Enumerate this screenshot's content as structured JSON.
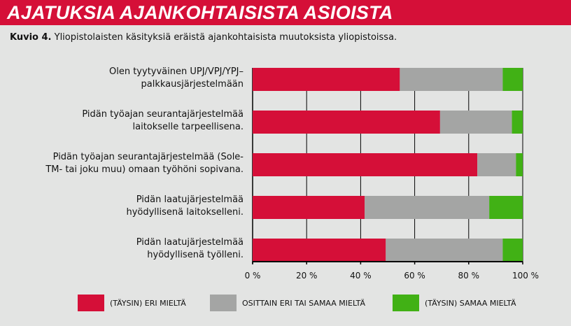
{
  "header": {
    "title": "AJATUKSIA AJANKOHTAISISTA ASIOISTA"
  },
  "caption": {
    "label": "Kuvio 4.",
    "text": "Yliopistolaisten käsityksiä eräistä ajankohtaisista muutoksista yliopistoissa."
  },
  "chart_data": {
    "type": "bar",
    "orientation": "horizontal",
    "stacked": true,
    "categories": [
      [
        "Olen tyytyväinen UPJ/VPJ/YPJ–",
        "palkkausjärjestelmään"
      ],
      [
        "Pidän työajan seurantajärjestelmää",
        "laitokselle tarpeellisena."
      ],
      [
        "Pidän työajan seurantajärjestelmää (Sole-",
        "TM- tai joku muu) omaan työhöni sopivana."
      ],
      [
        "Pidän laatujärjestelmää",
        "hyödyllisenä laitokselleni."
      ],
      [
        "Pidän laatujärjestelmää",
        "hyödyllisenä työlleni."
      ]
    ],
    "series": [
      {
        "name": "(TÄYSIN) ERI MIELTÄ",
        "color": "#d50f38",
        "values": [
          54.5,
          69.4,
          83.2,
          41.5,
          49.3
        ]
      },
      {
        "name": "OSITTAIN ERI TAI SAMAA MIELTÄ",
        "color": "#a4a5a4",
        "values": [
          38.1,
          26.6,
          14.3,
          46.1,
          43.3
        ]
      },
      {
        "name": "(TÄYSIN) SAMAA MIELTÄ",
        "color": "#41b115",
        "values": [
          7.4,
          4.0,
          2.5,
          12.4,
          7.4
        ]
      }
    ],
    "xticks": [
      "0 %",
      "20 %",
      "40 %",
      "60 %",
      "80 %",
      "100 %"
    ],
    "xlim": [
      0,
      100
    ],
    "grid": true,
    "legend": "bottom"
  }
}
